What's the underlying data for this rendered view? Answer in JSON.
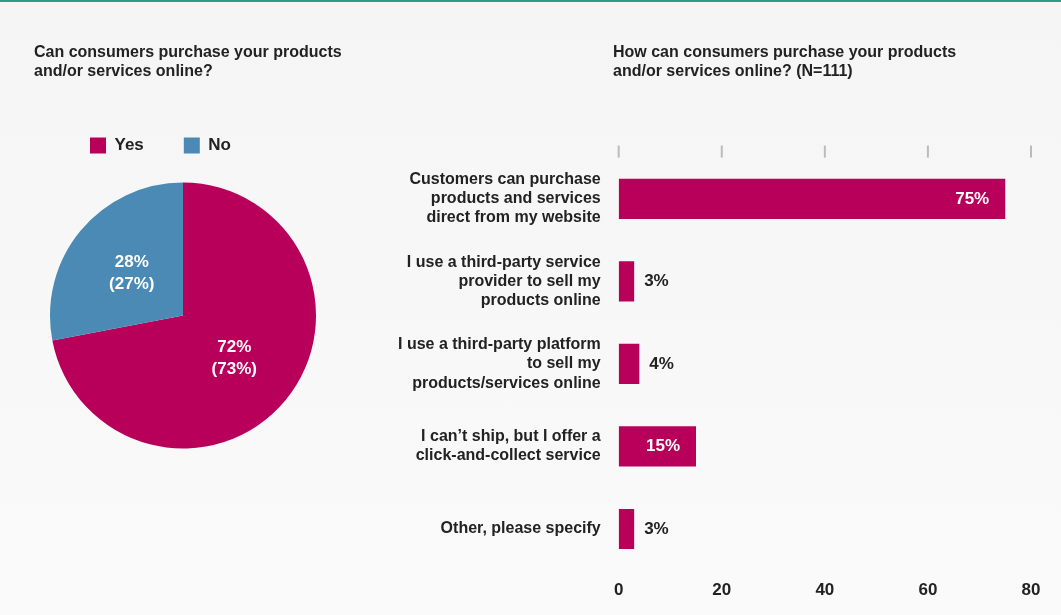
{
  "chart_data": [
    {
      "type": "pie",
      "title": "Can consumers purchase your products and/or services online?",
      "categories": [
        "Yes",
        "No"
      ],
      "values": [
        72,
        28
      ],
      "colors": [
        "#b8005a",
        "#4a8ab4"
      ],
      "value_labels": [
        "72%\n(73%)",
        "28%\n(27%)"
      ],
      "legend": "top left"
    },
    {
      "type": "bar",
      "orientation": "horizontal",
      "title": "How can consumers purchase your products and/or services online? (N=111)",
      "categories": [
        "Customers can purchase products and services direct from my website",
        "I use a third-party service provider to sell my products online",
        "I use a third-party platform to sell my products/services online",
        "I can’t ship, but I offer a click-and-collect service",
        "Other, please specify"
      ],
      "values": [
        75,
        3,
        4,
        15,
        3
      ],
      "color": "#b8005a",
      "value_labels": [
        "75%",
        "3%",
        "4%",
        "15%",
        "3%"
      ],
      "xlim": [
        0,
        80
      ],
      "xticks": [
        0,
        20,
        40,
        60,
        80
      ],
      "grid": false
    }
  ]
}
